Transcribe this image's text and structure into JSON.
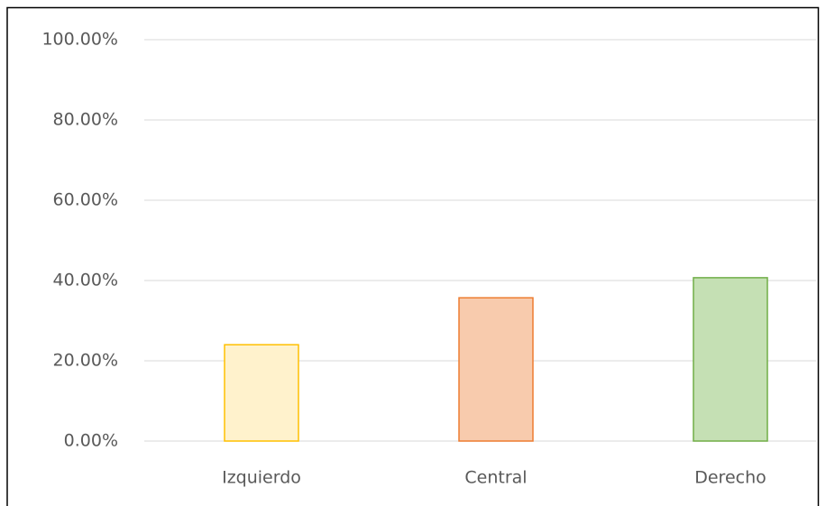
{
  "chart_data": {
    "type": "bar",
    "categories": [
      "Izquierdo",
      "Central",
      "Derecho"
    ],
    "values": [
      24,
      35.7,
      40.7
    ],
    "colors": [
      "#fff2cc",
      "#f8cbad",
      "#c5e0b4"
    ],
    "edge_colors": [
      "#ffc000",
      "#ed7d31",
      "#70ad47"
    ],
    "ylim": [
      0,
      100
    ],
    "yticks": [
      {
        "value": 0,
        "label": "0.00%"
      },
      {
        "value": 20,
        "label": "20.00%"
      },
      {
        "value": 40,
        "label": "40.00%"
      },
      {
        "value": 60,
        "label": "60.00%"
      },
      {
        "value": 80,
        "label": "80.00%"
      },
      {
        "value": 100,
        "label": "100.00%"
      }
    ],
    "grid": true
  }
}
